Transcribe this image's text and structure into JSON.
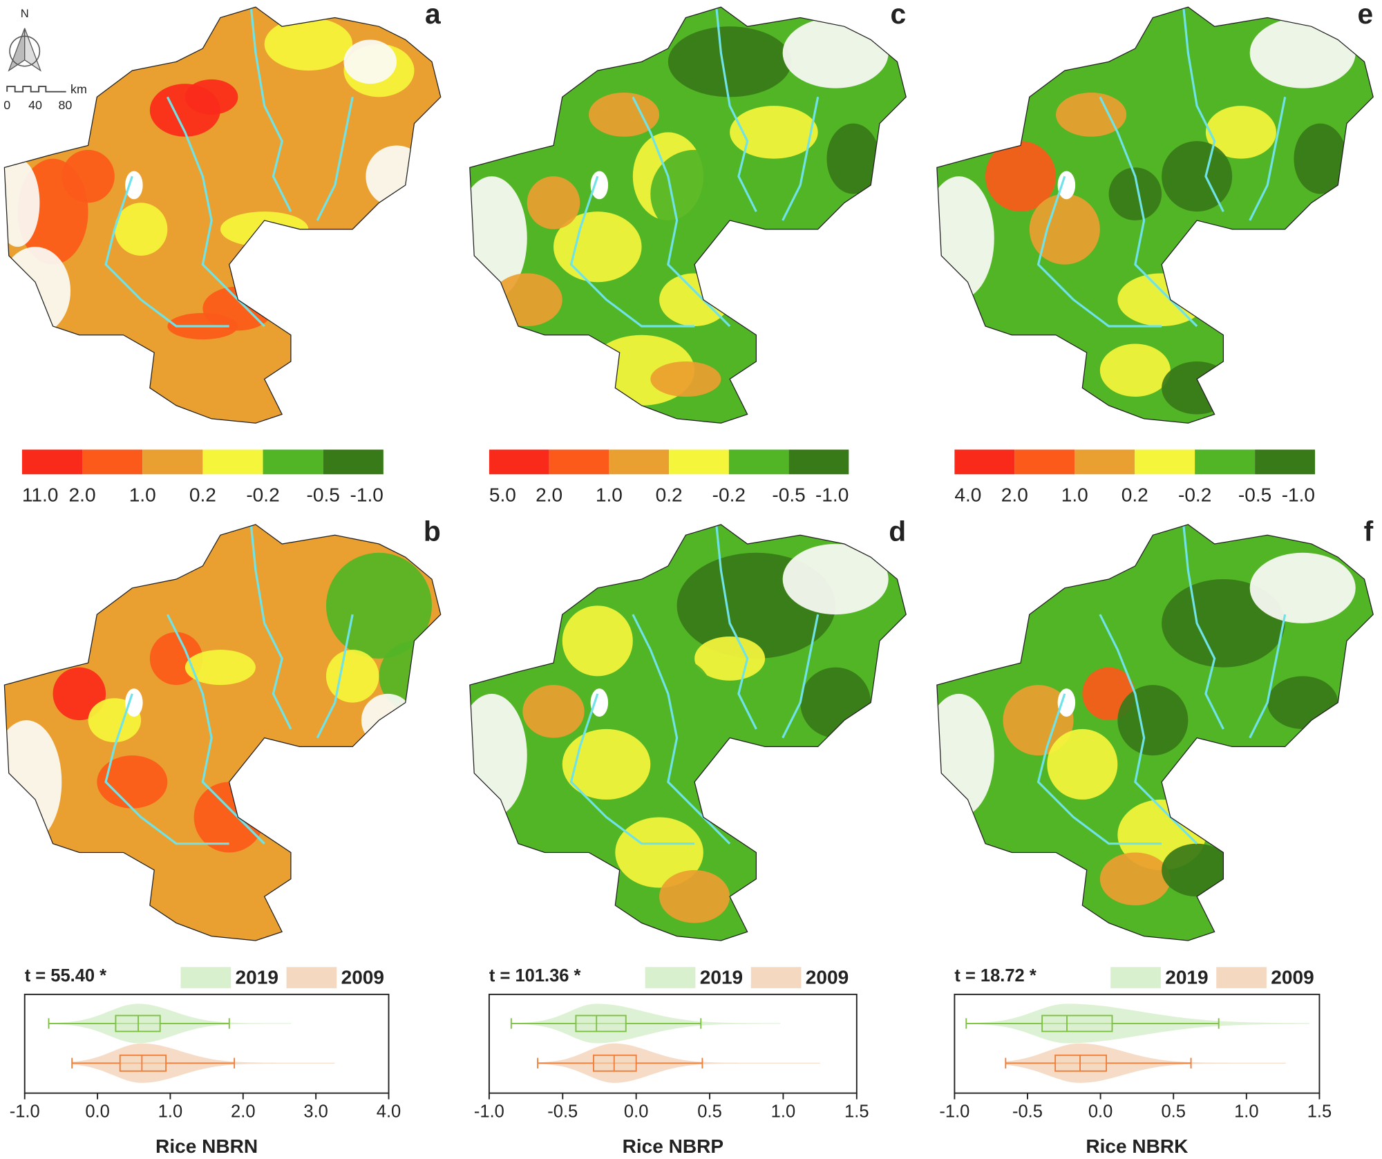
{
  "maps": {
    "north_label": "N",
    "scale_labels": [
      "0",
      "40",
      "80"
    ],
    "scale_unit": "km",
    "panels": [
      "a",
      "b",
      "c",
      "d",
      "e",
      "f"
    ],
    "legends": [
      {
        "colors": [
          "#fa2a1a",
          "#fc5a1a",
          "#eaa030",
          "#f5f53c",
          "#52b526",
          "#387a18"
        ],
        "labels": [
          "11.0",
          "2.0",
          "1.0",
          "0.2",
          "-0.2",
          "-0.5",
          "-1.0"
        ]
      },
      {
        "colors": [
          "#fa2a1a",
          "#fc5a1a",
          "#eaa030",
          "#f5f53c",
          "#52b526",
          "#387a18"
        ],
        "labels": [
          "5.0",
          "2.0",
          "1.0",
          "0.2",
          "-0.2",
          "-0.5",
          "-1.0"
        ]
      },
      {
        "colors": [
          "#fa2a1a",
          "#fc5a1a",
          "#eaa030",
          "#f5f53c",
          "#52b526",
          "#387a18"
        ],
        "labels": [
          "4.0",
          "2.0",
          "1.0",
          "0.2",
          "-0.2",
          "-0.5",
          "-1.0"
        ]
      }
    ]
  },
  "chart_data": [
    {
      "type": "box",
      "annotation": "t = 55.40 *",
      "xlabel": "Rice NBRN",
      "xlim": [
        -1,
        4
      ],
      "xticks": [
        {
          "value": -1,
          "label": "-1.0"
        },
        {
          "value": 0,
          "label": "0.0"
        },
        {
          "value": 1,
          "label": "1.0"
        },
        {
          "value": 2,
          "label": "2.0"
        },
        {
          "value": 3,
          "label": "3.0"
        },
        {
          "value": 4,
          "label": "4.0"
        }
      ],
      "series": [
        {
          "name": "2019",
          "color": "#7dc242",
          "fill": "#d9f0cf",
          "values": [
            -0.67,
            0.25,
            0.56,
            0.86,
            1.81
          ],
          "range": [
            -0.67,
            2.66
          ]
        },
        {
          "name": "2009",
          "color": "#f07f3c",
          "fill": "#f5d8c0",
          "values": [
            -0.35,
            0.31,
            0.61,
            0.94,
            1.88
          ],
          "range": [
            -0.35,
            3.26
          ]
        }
      ]
    },
    {
      "type": "box",
      "annotation": "t = 101.36 *",
      "xlabel": "Rice NBRP",
      "xlim": [
        -1,
        1.5
      ],
      "xticks": [
        {
          "value": -1,
          "label": "-1.0"
        },
        {
          "value": -0.5,
          "label": "-0.5"
        },
        {
          "value": 0,
          "label": "0.0"
        },
        {
          "value": 0.5,
          "label": "0.5"
        },
        {
          "value": 1,
          "label": "1.0"
        },
        {
          "value": 1.5,
          "label": "1.5"
        }
      ],
      "series": [
        {
          "name": "2019",
          "color": "#7dc242",
          "fill": "#d9f0cf",
          "values": [
            -0.85,
            -0.41,
            -0.27,
            -0.07,
            0.44
          ],
          "range": [
            -0.85,
            0.98
          ]
        },
        {
          "name": "2009",
          "color": "#f07f3c",
          "fill": "#f5d8c0",
          "values": [
            -0.67,
            -0.29,
            -0.15,
            0.0,
            0.45
          ],
          "range": [
            -0.67,
            1.25
          ]
        }
      ]
    },
    {
      "type": "box",
      "annotation": "t = 18.72 *",
      "xlabel": "Rice NBRK",
      "xlim": [
        -1,
        1.5
      ],
      "xticks": [
        {
          "value": -1,
          "label": "-1.0"
        },
        {
          "value": -0.5,
          "label": "-0.5"
        },
        {
          "value": 0,
          "label": "0.0"
        },
        {
          "value": 0.5,
          "label": "0.5"
        },
        {
          "value": 1,
          "label": "1.0"
        },
        {
          "value": 1.5,
          "label": "1.5"
        }
      ],
      "series": [
        {
          "name": "2019",
          "color": "#7dc242",
          "fill": "#d9f0cf",
          "values": [
            -0.92,
            -0.4,
            -0.23,
            0.08,
            0.81
          ],
          "range": [
            -0.92,
            1.43
          ]
        },
        {
          "name": "2009",
          "color": "#f07f3c",
          "fill": "#f5d8c0",
          "values": [
            -0.65,
            -0.31,
            -0.14,
            0.04,
            0.62
          ],
          "range": [
            -0.65,
            1.27
          ]
        }
      ]
    }
  ]
}
